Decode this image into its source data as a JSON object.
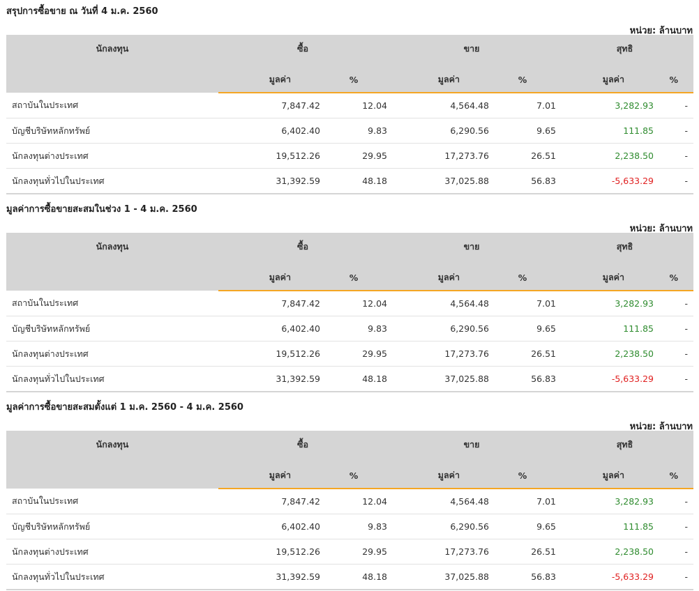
{
  "unit_label": "หน่วย: ล้านบาท",
  "headers": {
    "investor": "นักลงทุน",
    "buy": "ซื้อ",
    "sell": "ขาย",
    "net": "สุทธิ",
    "value": "มูลค่า",
    "percent": "%"
  },
  "colors": {
    "header_bg": "#d5d5d5",
    "accent_orange": "#f5a623",
    "positive_green": "#2e8b2e",
    "negative_red": "#e02020"
  },
  "sections": [
    {
      "title": "สรุปการซื้อขาย ณ วันที่ 4 ม.ค. 2560",
      "rows": [
        {
          "name": "สถาบันในประเทศ",
          "buy_value": "7,847.42",
          "buy_pct": "12.04",
          "sell_value": "4,564.48",
          "sell_pct": "7.01",
          "net_value": "3,282.93",
          "net_pct": "-",
          "net_sign": "pos"
        },
        {
          "name": "บัญชีบริษัทหลักทรัพย์",
          "buy_value": "6,402.40",
          "buy_pct": "9.83",
          "sell_value": "6,290.56",
          "sell_pct": "9.65",
          "net_value": "111.85",
          "net_pct": "-",
          "net_sign": "pos"
        },
        {
          "name": "นักลงทุนต่างประเทศ",
          "buy_value": "19,512.26",
          "buy_pct": "29.95",
          "sell_value": "17,273.76",
          "sell_pct": "26.51",
          "net_value": "2,238.50",
          "net_pct": "-",
          "net_sign": "pos"
        },
        {
          "name": "นักลงทุนทั่วไปในประเทศ",
          "buy_value": "31,392.59",
          "buy_pct": "48.18",
          "sell_value": "37,025.88",
          "sell_pct": "56.83",
          "net_value": "-5,633.29",
          "net_pct": "-",
          "net_sign": "neg"
        }
      ]
    },
    {
      "title": "มูลค่าการซื้อขายสะสมในช่วง 1 - 4 ม.ค. 2560",
      "rows": [
        {
          "name": "สถาบันในประเทศ",
          "buy_value": "7,847.42",
          "buy_pct": "12.04",
          "sell_value": "4,564.48",
          "sell_pct": "7.01",
          "net_value": "3,282.93",
          "net_pct": "-",
          "net_sign": "pos"
        },
        {
          "name": "บัญชีบริษัทหลักทรัพย์",
          "buy_value": "6,402.40",
          "buy_pct": "9.83",
          "sell_value": "6,290.56",
          "sell_pct": "9.65",
          "net_value": "111.85",
          "net_pct": "-",
          "net_sign": "pos"
        },
        {
          "name": "นักลงทุนต่างประเทศ",
          "buy_value": "19,512.26",
          "buy_pct": "29.95",
          "sell_value": "17,273.76",
          "sell_pct": "26.51",
          "net_value": "2,238.50",
          "net_pct": "-",
          "net_sign": "pos"
        },
        {
          "name": "นักลงทุนทั่วไปในประเทศ",
          "buy_value": "31,392.59",
          "buy_pct": "48.18",
          "sell_value": "37,025.88",
          "sell_pct": "56.83",
          "net_value": "-5,633.29",
          "net_pct": "-",
          "net_sign": "neg"
        }
      ]
    },
    {
      "title": "มูลค่าการซื้อขายสะสมตั้งแต่ 1 ม.ค. 2560 - 4 ม.ค. 2560",
      "rows": [
        {
          "name": "สถาบันในประเทศ",
          "buy_value": "7,847.42",
          "buy_pct": "12.04",
          "sell_value": "4,564.48",
          "sell_pct": "7.01",
          "net_value": "3,282.93",
          "net_pct": "-",
          "net_sign": "pos"
        },
        {
          "name": "บัญชีบริษัทหลักทรัพย์",
          "buy_value": "6,402.40",
          "buy_pct": "9.83",
          "sell_value": "6,290.56",
          "sell_pct": "9.65",
          "net_value": "111.85",
          "net_pct": "-",
          "net_sign": "pos"
        },
        {
          "name": "นักลงทุนต่างประเทศ",
          "buy_value": "19,512.26",
          "buy_pct": "29.95",
          "sell_value": "17,273.76",
          "sell_pct": "26.51",
          "net_value": "2,238.50",
          "net_pct": "-",
          "net_sign": "pos"
        },
        {
          "name": "นักลงทุนทั่วไปในประเทศ",
          "buy_value": "31,392.59",
          "buy_pct": "48.18",
          "sell_value": "37,025.88",
          "sell_pct": "56.83",
          "net_value": "-5,633.29",
          "net_pct": "-",
          "net_sign": "neg"
        }
      ]
    }
  ]
}
